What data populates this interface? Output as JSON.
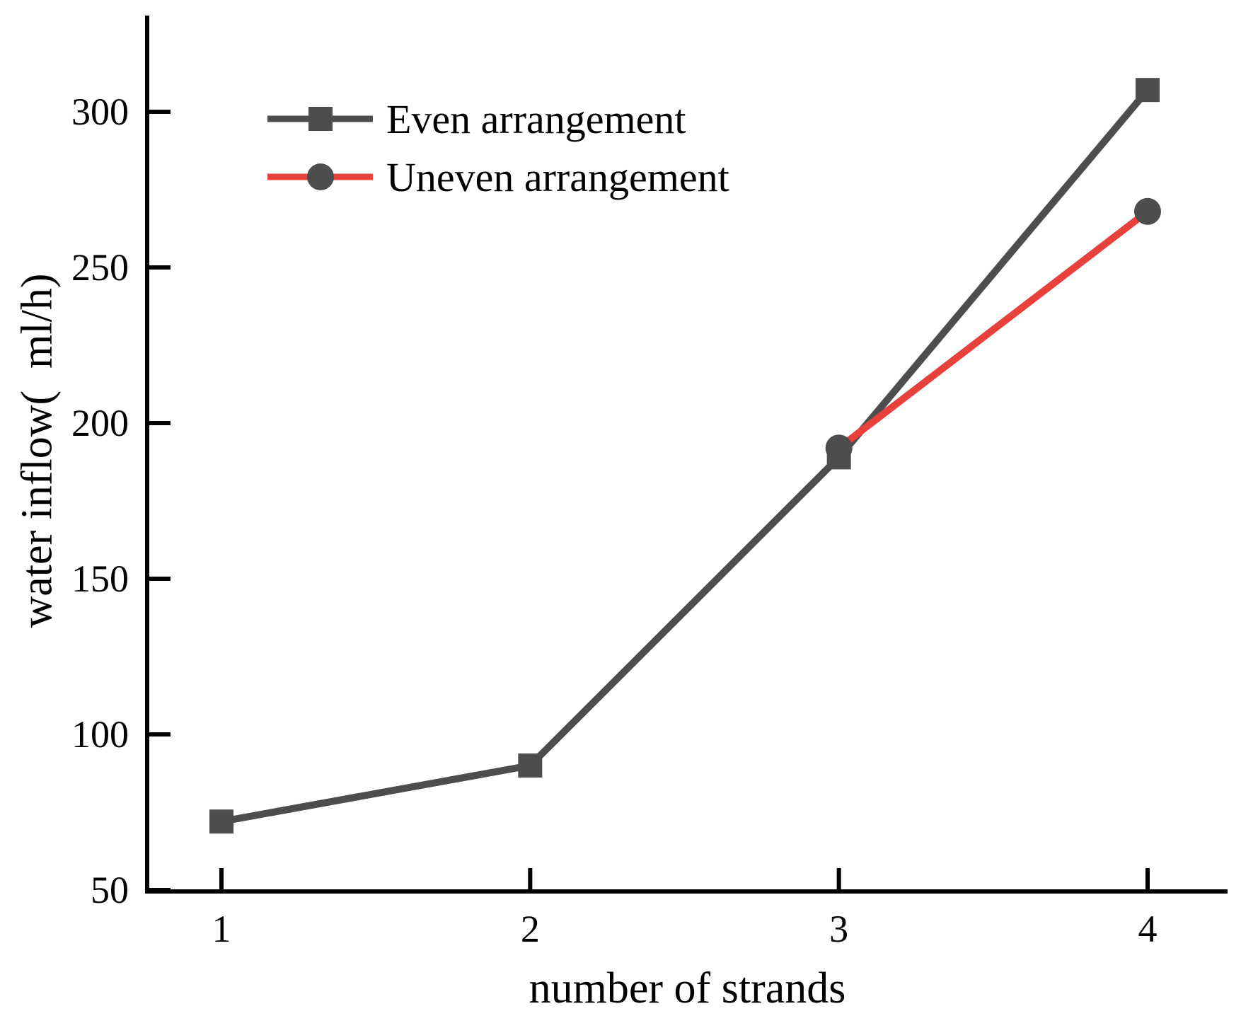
{
  "chart_data": {
    "type": "line",
    "title": "",
    "xlabel": "number of strands",
    "ylabel": "water inflow(  ml/h)",
    "x_ticks": [
      1,
      2,
      3,
      4
    ],
    "y_ticks": [
      50,
      100,
      150,
      200,
      250,
      300
    ],
    "xlim": [
      0.76,
      4.26
    ],
    "ylim": [
      50,
      332
    ],
    "grid": false,
    "legend_position": "inside-top-left",
    "series": [
      {
        "name": "Even arrangement",
        "x": [
          1,
          2,
          3,
          4
        ],
        "y": [
          72,
          90,
          189,
          307
        ],
        "marker": "square",
        "color": "#4d4d4d",
        "line_color": "#4d4d4d"
      },
      {
        "name": "Uneven arrangement",
        "x": [
          3,
          4
        ],
        "y": [
          192,
          268
        ],
        "marker": "circle",
        "color": "#4d4d4d",
        "line_color": "#e8413c"
      }
    ]
  },
  "colors": {
    "background": "#ffffff",
    "axis": "#000000",
    "text": "#000000",
    "even_gray": "#4d4d4d",
    "uneven_red": "#e8413c"
  }
}
